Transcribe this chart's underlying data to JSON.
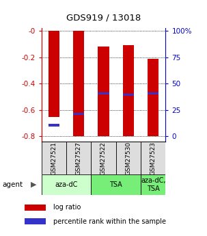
{
  "title": "GDS919 / 13018",
  "samples": [
    "GSM27521",
    "GSM27527",
    "GSM27522",
    "GSM27530",
    "GSM27523"
  ],
  "bar_bottoms": [
    -0.655,
    -0.8,
    -0.8,
    -0.8,
    -0.8
  ],
  "bar_tops": [
    -0.0,
    -0.0,
    -0.12,
    -0.11,
    -0.21
  ],
  "percentile_ranks": [
    0.145,
    0.245,
    0.425,
    0.415,
    0.425
  ],
  "bar_color": "#cc0000",
  "percentile_color": "#3333cc",
  "ylim": [
    -0.84,
    0.02
  ],
  "yticks": [
    0.0,
    -0.2,
    -0.4,
    -0.6,
    -0.8
  ],
  "ytick_labels_left": [
    "-0",
    "-0.2",
    "-0.4",
    "-0.6",
    "-0.8"
  ],
  "ytick_labels_right": [
    "100%",
    "75",
    "50",
    "25",
    "0"
  ],
  "agent_groups": [
    {
      "label": "aza-dC",
      "start": 0,
      "end": 2,
      "color": "#ccffcc"
    },
    {
      "label": "TSA",
      "start": 2,
      "end": 4,
      "color": "#77ee77"
    },
    {
      "label": "aza-dC,\nTSA",
      "start": 4,
      "end": 5,
      "color": "#77ee77"
    }
  ],
  "legend_items": [
    {
      "color": "#cc0000",
      "label": "log ratio"
    },
    {
      "color": "#3333cc",
      "label": "percentile rank within the sample"
    }
  ]
}
